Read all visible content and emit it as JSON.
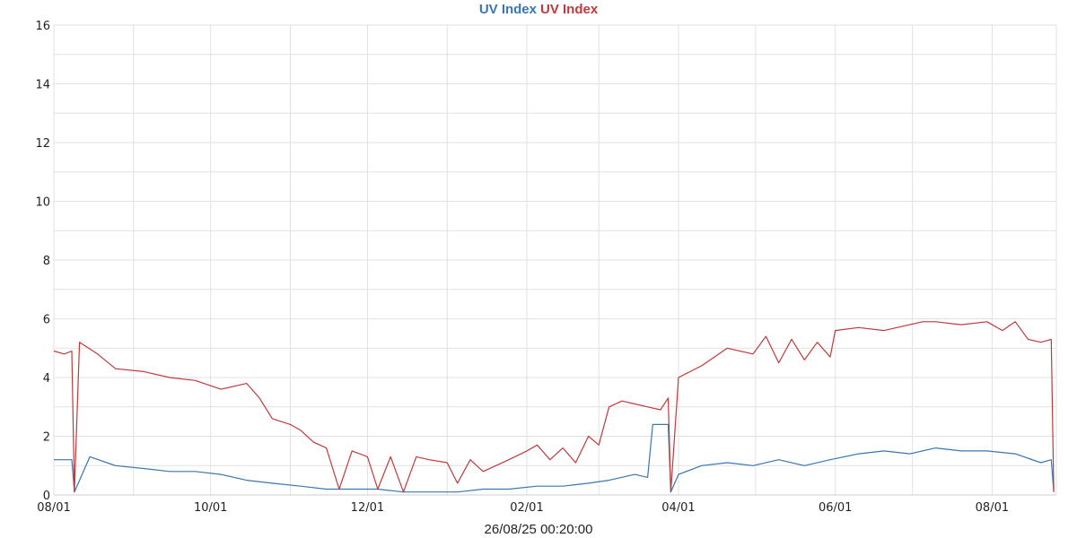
{
  "chart_data": {
    "type": "line",
    "title_parts": [
      "UV Index",
      "UV Index"
    ],
    "footer": "26/08/25 00:20:00",
    "ylim": [
      0,
      16
    ],
    "yticks": [
      "0",
      "2",
      "4",
      "6",
      "8",
      "10",
      "12",
      "14",
      "16"
    ],
    "xlim": [
      "2024-08-01",
      "2025-08-26"
    ],
    "xticks": [
      "08/01",
      "10/01",
      "12/01",
      "02/01",
      "04/01",
      "06/01",
      "08/01"
    ],
    "grid": true,
    "series": [
      {
        "name": "UV Index",
        "color": "#3a76b0",
        "x": [
          "2024-08-01",
          "2024-08-08",
          "2024-08-09",
          "2024-08-15",
          "2024-08-25",
          "2024-09-05",
          "2024-09-15",
          "2024-09-25",
          "2024-10-05",
          "2024-10-15",
          "2024-10-25",
          "2024-11-05",
          "2024-11-15",
          "2024-11-25",
          "2024-12-05",
          "2024-12-15",
          "2024-12-25",
          "2025-01-05",
          "2025-01-15",
          "2025-01-25",
          "2025-02-05",
          "2025-02-15",
          "2025-02-25",
          "2025-03-05",
          "2025-03-15",
          "2025-03-20",
          "2025-03-22",
          "2025-03-28",
          "2025-03-29",
          "2025-04-01",
          "2025-04-10",
          "2025-04-20",
          "2025-04-30",
          "2025-05-10",
          "2025-05-20",
          "2025-05-30",
          "2025-06-10",
          "2025-06-20",
          "2025-06-30",
          "2025-07-10",
          "2025-07-20",
          "2025-07-30",
          "2025-08-10",
          "2025-08-20",
          "2025-08-24",
          "2025-08-25"
        ],
        "values": [
          1.2,
          1.2,
          0.1,
          1.3,
          1.0,
          0.9,
          0.8,
          0.8,
          0.7,
          0.5,
          0.4,
          0.3,
          0.2,
          0.2,
          0.2,
          0.1,
          0.1,
          0.1,
          0.2,
          0.2,
          0.3,
          0.3,
          0.4,
          0.5,
          0.7,
          0.6,
          2.4,
          2.4,
          0.1,
          0.7,
          1.0,
          1.1,
          1.0,
          1.2,
          1.0,
          1.2,
          1.4,
          1.5,
          1.4,
          1.6,
          1.5,
          1.5,
          1.4,
          1.1,
          1.2,
          0.1
        ]
      },
      {
        "name": "UV Index",
        "color": "#c0393b",
        "x": [
          "2024-08-01",
          "2024-08-05",
          "2024-08-08",
          "2024-08-09",
          "2024-08-11",
          "2024-08-18",
          "2024-08-25",
          "2024-09-05",
          "2024-09-15",
          "2024-09-25",
          "2024-10-05",
          "2024-10-15",
          "2024-10-20",
          "2024-10-25",
          "2024-11-01",
          "2024-11-05",
          "2024-11-10",
          "2024-11-15",
          "2024-11-20",
          "2024-11-25",
          "2024-12-01",
          "2024-12-05",
          "2024-12-10",
          "2024-12-15",
          "2024-12-20",
          "2024-12-25",
          "2025-01-01",
          "2025-01-05",
          "2025-01-10",
          "2025-01-15",
          "2025-01-20",
          "2025-01-25",
          "2025-02-01",
          "2025-02-05",
          "2025-02-10",
          "2025-02-15",
          "2025-02-20",
          "2025-02-25",
          "2025-03-01",
          "2025-03-05",
          "2025-03-10",
          "2025-03-15",
          "2025-03-20",
          "2025-03-25",
          "2025-03-28",
          "2025-03-29",
          "2025-04-01",
          "2025-04-10",
          "2025-04-20",
          "2025-04-30",
          "2025-05-05",
          "2025-05-10",
          "2025-05-15",
          "2025-05-20",
          "2025-05-25",
          "2025-05-30",
          "2025-06-01",
          "2025-06-10",
          "2025-06-20",
          "2025-06-30",
          "2025-07-05",
          "2025-07-10",
          "2025-07-20",
          "2025-07-30",
          "2025-08-05",
          "2025-08-10",
          "2025-08-15",
          "2025-08-20",
          "2025-08-24",
          "2025-08-25"
        ],
        "values": [
          4.9,
          4.8,
          4.9,
          0.1,
          5.2,
          4.8,
          4.3,
          4.2,
          4.0,
          3.9,
          3.6,
          3.8,
          3.3,
          2.6,
          2.4,
          2.2,
          1.8,
          1.6,
          0.2,
          1.5,
          1.3,
          0.2,
          1.3,
          0.1,
          1.3,
          1.2,
          1.1,
          0.4,
          1.2,
          0.8,
          1.0,
          1.2,
          1.5,
          1.7,
          1.2,
          1.6,
          1.1,
          2.0,
          1.7,
          3.0,
          3.2,
          3.1,
          3.0,
          2.9,
          3.3,
          0.1,
          4.0,
          4.4,
          5.0,
          4.8,
          5.4,
          4.5,
          5.3,
          4.6,
          5.2,
          4.7,
          5.6,
          5.7,
          5.6,
          5.8,
          5.9,
          5.9,
          5.8,
          5.9,
          5.6,
          5.9,
          5.3,
          5.2,
          5.3,
          0.1
        ]
      }
    ]
  }
}
